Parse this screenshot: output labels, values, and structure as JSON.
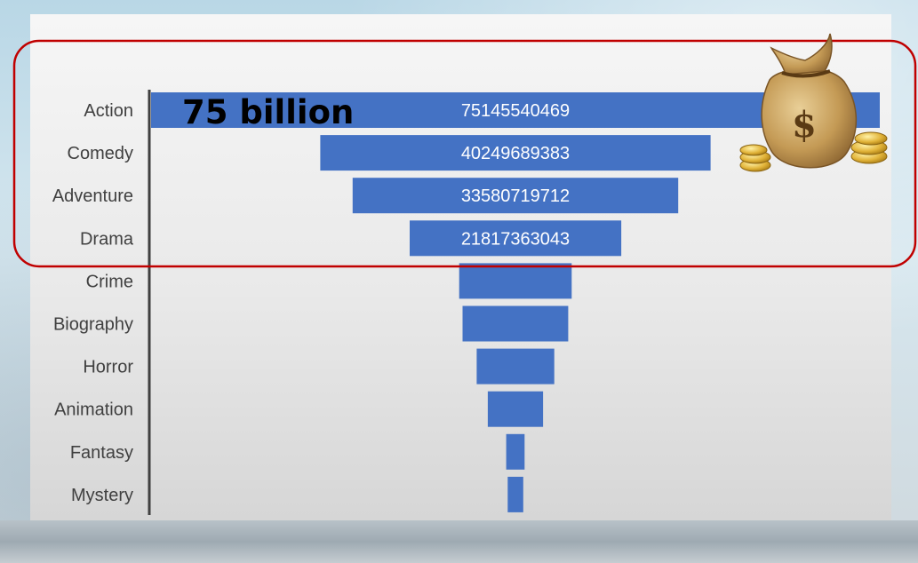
{
  "chart_data": {
    "type": "bar",
    "orientation": "horizontal-funnel",
    "categories": [
      "Action",
      "Comedy",
      "Adventure",
      "Drama",
      "Crime",
      "Biography",
      "Horror",
      "Animation",
      "Fantasy",
      "Mystery"
    ],
    "values": [
      75145540469,
      40249689383,
      33580719712,
      21817363043,
      11600000000,
      10900000000,
      8000000000,
      5700000000,
      1900000000,
      1600000000
    ],
    "data_labels": [
      "75145540469",
      "40249689383",
      "33580719712",
      "21817363043",
      "",
      "",
      "",
      "",
      "",
      ""
    ],
    "title": "",
    "xlabel": "",
    "ylabel": "",
    "grid": false,
    "legend": "none",
    "bar_color": "#4472c4"
  },
  "annotation": {
    "callout_text": "75  billion",
    "highlight_color": "#c00000",
    "icon": "money-bag-icon"
  }
}
